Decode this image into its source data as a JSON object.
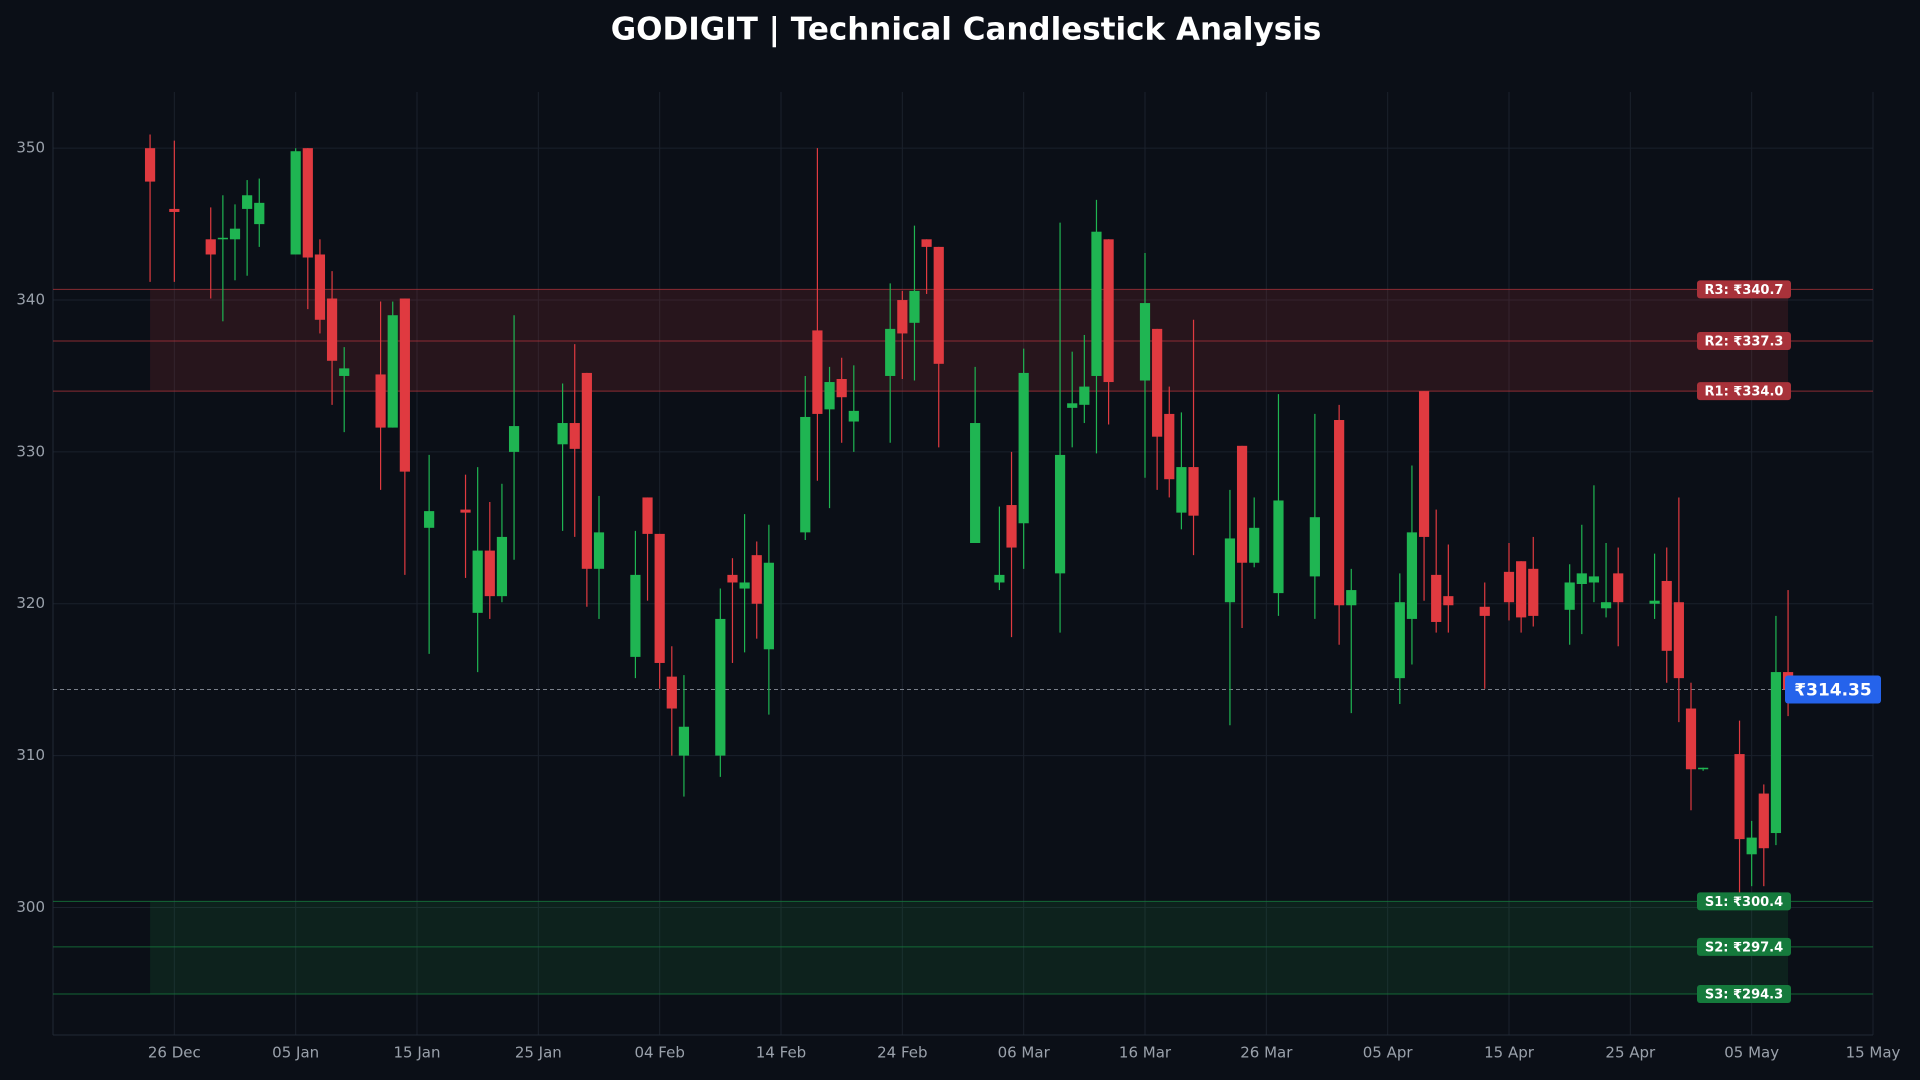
{
  "chart_data": {
    "type": "candlestick",
    "title": "GODIGIT | Technical Candlestick Analysis",
    "up_color": "#1fb552",
    "down_color": "#e03a40",
    "grid": true,
    "x": [
      "24 Dec",
      "26 Dec",
      "29 Dec",
      "30 Dec",
      "31 Dec",
      "01 Jan",
      "02 Jan",
      "05 Jan",
      "06 Jan",
      "07 Jan",
      "08 Jan",
      "09 Jan",
      "12 Jan",
      "13 Jan",
      "14 Jan",
      "16 Jan",
      "19 Jan",
      "20 Jan",
      "21 Jan",
      "22 Jan",
      "23 Jan",
      "27 Jan",
      "28 Jan",
      "29 Jan",
      "30 Jan",
      "02 Feb",
      "03 Feb",
      "04 Feb",
      "05 Feb",
      "06 Feb",
      "09 Feb",
      "10 Feb",
      "11 Feb",
      "12 Feb",
      "13 Feb",
      "16 Feb",
      "17 Feb",
      "18 Feb",
      "19 Feb",
      "20 Feb",
      "23 Feb",
      "24 Feb",
      "25 Feb",
      "26 Feb",
      "27 Feb",
      "02 Mar",
      "04 Mar",
      "05 Mar",
      "06 Mar",
      "09 Mar",
      "10 Mar",
      "11 Mar",
      "12 Mar",
      "13 Mar",
      "16 Mar",
      "17 Mar",
      "18 Mar",
      "19 Mar",
      "20 Mar",
      "23 Mar",
      "24 Mar",
      "25 Mar",
      "27 Mar",
      "30 Mar",
      "01 Apr",
      "02 Apr",
      "06 Apr",
      "07 Apr",
      "08 Apr",
      "09 Apr",
      "10 Apr",
      "13 Apr",
      "15 Apr",
      "16 Apr",
      "17 Apr",
      "20 Apr",
      "21 Apr",
      "22 Apr",
      "23 Apr",
      "24 Apr",
      "27 Apr",
      "28 Apr",
      "29 Apr",
      "30 Apr",
      "01 May",
      "04 May",
      "05 May",
      "06 May",
      "07 May",
      "08 May"
    ],
    "open": [
      350,
      346,
      344,
      344,
      344,
      346,
      345,
      343,
      350,
      343,
      340.1,
      335,
      335.1,
      331.6,
      340.1,
      325,
      326.2,
      319.4,
      323.5,
      320.5,
      330,
      330.5,
      331.9,
      335.2,
      322.3,
      316.5,
      327,
      324.6,
      315.2,
      310,
      310,
      321.9,
      321,
      323.2,
      317,
      324.7,
      338,
      332.8,
      334.8,
      332,
      335,
      340,
      338.5,
      344,
      343.5,
      324,
      321.4,
      326.5,
      325.3,
      322,
      332.9,
      333.1,
      335,
      344,
      334.7,
      338.1,
      332.5,
      326,
      329,
      320.1,
      330.4,
      322.7,
      320.7,
      321.8,
      332.1,
      319.9,
      315.1,
      319,
      334,
      321.9,
      320.5,
      319.8,
      322.1,
      322.8,
      322.3,
      319.6,
      321.3,
      321.4,
      319.7,
      322,
      320,
      321.5,
      320.1,
      313.1,
      309.1,
      310.1,
      303.5,
      307.5,
      304.9,
      315.5
    ],
    "high": [
      350.9,
      350.5,
      346.1,
      346.9,
      346.3,
      347.9,
      348,
      350,
      350,
      344,
      341.9,
      336.9,
      339.9,
      339.9,
      340.1,
      329.8,
      328.5,
      329,
      326.7,
      327.9,
      339,
      334.5,
      337.1,
      335.2,
      327.1,
      324.8,
      327,
      324.6,
      317.2,
      315.3,
      321,
      323,
      325.9,
      324.1,
      325.2,
      335,
      350,
      335.6,
      336.2,
      335.7,
      341.1,
      340.6,
      344.9,
      344,
      343.5,
      335.6,
      326.4,
      330,
      336.8,
      345.1,
      336.6,
      337.7,
      346.6,
      344,
      343.1,
      338.1,
      334.3,
      332.6,
      338.7,
      327.5,
      330.4,
      327,
      333.8,
      332.5,
      333.1,
      322.3,
      322,
      329.1,
      334,
      326.2,
      323.9,
      321.4,
      324,
      322.8,
      324.4,
      322.6,
      325.2,
      327.8,
      324,
      323.7,
      323.3,
      323.7,
      327,
      314.8,
      309.2,
      312.3,
      305.7,
      308.1,
      319.2,
      320.9
    ],
    "low": [
      341.2,
      341.2,
      340.1,
      338.6,
      341.3,
      341.6,
      343.5,
      343,
      339.4,
      337.8,
      333.1,
      331.3,
      327.5,
      331.6,
      321.9,
      316.7,
      321.7,
      315.5,
      319,
      320.1,
      322.9,
      324.8,
      324.4,
      319.8,
      319,
      315.1,
      320.2,
      314.4,
      310,
      307.3,
      308.6,
      316.1,
      316.8,
      317.7,
      312.7,
      324.2,
      328.1,
      326.3,
      330.6,
      330,
      330.6,
      334.8,
      334.7,
      340.4,
      330.3,
      324,
      320.9,
      317.8,
      322.3,
      318.1,
      330.3,
      331.9,
      329.9,
      331.8,
      328.3,
      327.5,
      327,
      324.9,
      323.2,
      312,
      318.4,
      322.4,
      319.2,
      319,
      317.3,
      312.8,
      313.4,
      316,
      320.2,
      318.1,
      318.1,
      314.4,
      318.9,
      318.1,
      318.5,
      317.3,
      318,
      320.1,
      319.1,
      317.2,
      319,
      314.8,
      312.2,
      306.4,
      309,
      300.9,
      301.4,
      301.4,
      304.1,
      312.6
    ],
    "close": [
      347.8,
      345.8,
      343,
      344.1,
      344.7,
      346.9,
      346.4,
      349.8,
      342.8,
      338.7,
      336,
      335.5,
      331.6,
      339,
      328.7,
      326.1,
      326,
      323.5,
      320.5,
      324.4,
      331.7,
      331.9,
      330.2,
      322.3,
      324.7,
      321.9,
      324.6,
      316.1,
      313.1,
      311.9,
      319,
      321.4,
      321.4,
      320,
      322.7,
      332.3,
      332.5,
      334.6,
      333.6,
      332.7,
      338.1,
      337.8,
      340.6,
      343.5,
      335.8,
      331.9,
      321.9,
      323.7,
      335.2,
      329.8,
      333.2,
      334.3,
      344.5,
      334.6,
      339.8,
      331,
      328.2,
      329,
      325.8,
      324.3,
      322.7,
      325,
      326.8,
      325.7,
      319.9,
      320.9,
      320.1,
      324.7,
      324.4,
      318.8,
      319.9,
      319.2,
      320.1,
      319.1,
      319.2,
      321.4,
      322,
      321.8,
      320.1,
      320.1,
      320.2,
      316.9,
      315.1,
      309.1,
      309.2,
      304.5,
      304.6,
      303.9,
      315.5,
      314.35
    ],
    "levels": [
      {
        "label": "R3: ₹340.7",
        "value": 340.7,
        "color": "#a8323a"
      },
      {
        "label": "R2: ₹337.3",
        "value": 337.3,
        "color": "#a8323a"
      },
      {
        "label": "R1: ₹334.0",
        "value": 334.0,
        "color": "#a8323a"
      },
      {
        "label": "S1: ₹300.4",
        "value": 300.4,
        "color": "#157a3c"
      },
      {
        "label": "S2: ₹297.4",
        "value": 297.4,
        "color": "#157a3c"
      },
      {
        "label": "S3: ₹294.3",
        "value": 294.3,
        "color": "#157a3c"
      }
    ],
    "last_price": {
      "value": 314.35,
      "label": "₹314.35",
      "color": "#2563eb"
    },
    "xlim": [
      "16 Dec",
      "15 May"
    ],
    "xticks": [
      "26 Dec",
      "05 Jan",
      "15 Jan",
      "25 Jan",
      "04 Feb",
      "14 Feb",
      "24 Feb",
      "06 Mar",
      "16 Mar",
      "26 Mar",
      "05 Apr",
      "15 Apr",
      "25 Apr",
      "05 May",
      "15 May"
    ],
    "ylim": [
      291.6,
      353.7
    ],
    "yticks": [
      300,
      310,
      320,
      330,
      340,
      350
    ]
  }
}
